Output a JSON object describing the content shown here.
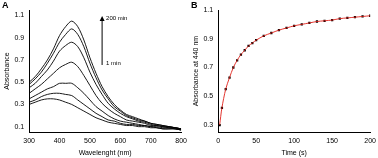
{
  "chart_data": [
    {
      "type": "line",
      "title": "A",
      "x_label": "Wavelenght (nm)",
      "y_label": "Absorbance",
      "annotations": [
        "200 min",
        "1 min"
      ],
      "x": [
        300,
        320,
        340,
        360,
        380,
        400,
        420,
        440,
        460,
        480,
        500,
        520,
        540,
        560,
        580,
        600,
        620,
        640,
        660,
        680,
        700,
        720,
        740,
        760,
        780,
        800
      ],
      "series": [
        {
          "color": "#000000",
          "values": [
            0.3,
            0.32,
            0.34,
            0.35,
            0.35,
            0.34,
            0.32,
            0.3,
            0.27,
            0.24,
            0.21,
            0.18,
            0.16,
            0.14,
            0.13,
            0.12,
            0.11,
            0.11,
            0.1,
            0.1,
            0.09,
            0.09,
            0.08,
            0.08,
            0.08,
            0.07
          ]
        },
        {
          "color": "#000000",
          "values": [
            0.32,
            0.34,
            0.37,
            0.39,
            0.4,
            0.4,
            0.39,
            0.38,
            0.34,
            0.3,
            0.26,
            0.22,
            0.19,
            0.16,
            0.15,
            0.13,
            0.12,
            0.12,
            0.11,
            0.11,
            0.1,
            0.09,
            0.08,
            0.08,
            0.08,
            0.07
          ]
        },
        {
          "color": "#000000",
          "values": [
            0.35,
            0.38,
            0.41,
            0.44,
            0.46,
            0.49,
            0.49,
            0.49,
            0.45,
            0.4,
            0.34,
            0.28,
            0.24,
            0.2,
            0.17,
            0.15,
            0.14,
            0.13,
            0.12,
            0.11,
            0.1,
            0.1,
            0.09,
            0.09,
            0.08,
            0.07
          ]
        },
        {
          "color": "#000000",
          "values": [
            0.4,
            0.44,
            0.48,
            0.53,
            0.58,
            0.63,
            0.66,
            0.68,
            0.64,
            0.56,
            0.47,
            0.38,
            0.31,
            0.26,
            0.22,
            0.19,
            0.16,
            0.15,
            0.14,
            0.13,
            0.11,
            0.11,
            0.1,
            0.09,
            0.09,
            0.08
          ]
        },
        {
          "color": "#000000",
          "values": [
            0.45,
            0.49,
            0.55,
            0.61,
            0.69,
            0.78,
            0.83,
            0.86,
            0.82,
            0.72,
            0.59,
            0.48,
            0.39,
            0.31,
            0.26,
            0.22,
            0.19,
            0.17,
            0.15,
            0.14,
            0.12,
            0.11,
            0.1,
            0.1,
            0.09,
            0.08
          ]
        },
        {
          "color": "#000000",
          "values": [
            0.48,
            0.53,
            0.59,
            0.67,
            0.76,
            0.86,
            0.93,
            0.98,
            0.93,
            0.82,
            0.67,
            0.54,
            0.43,
            0.35,
            0.28,
            0.24,
            0.2,
            0.18,
            0.16,
            0.15,
            0.13,
            0.12,
            0.11,
            0.1,
            0.09,
            0.08
          ]
        },
        {
          "color": "#000000",
          "values": [
            0.5,
            0.55,
            0.62,
            0.7,
            0.8,
            0.92,
            1.0,
            1.05,
            1.0,
            0.88,
            0.72,
            0.58,
            0.46,
            0.37,
            0.3,
            0.25,
            0.21,
            0.19,
            0.17,
            0.15,
            0.13,
            0.12,
            0.11,
            0.1,
            0.09,
            0.08
          ]
        }
      ],
      "xlim": [
        300,
        800
      ],
      "xticks": [
        300,
        400,
        500,
        600,
        700,
        800
      ],
      "ylim": [
        0.05,
        1.15
      ],
      "yticks": [
        0.1,
        0.3,
        0.5,
        0.7,
        0.9,
        1.1
      ],
      "grid": false
    },
    {
      "type": "scatter",
      "title": "B",
      "x_label": "Time (s)",
      "y_label": "Absorbance at 440 nm",
      "x": [
        2,
        5,
        10,
        15,
        20,
        25,
        30,
        35,
        40,
        45,
        50,
        60,
        70,
        80,
        90,
        100,
        110,
        120,
        130,
        140,
        150,
        160,
        170,
        180,
        190,
        200
      ],
      "series": [
        {
          "type": "scatter",
          "marker": "square",
          "color": "#000000",
          "values": [
            0.3,
            0.42,
            0.55,
            0.63,
            0.7,
            0.75,
            0.79,
            0.82,
            0.85,
            0.87,
            0.89,
            0.92,
            0.94,
            0.96,
            0.975,
            0.99,
            1.0,
            1.01,
            1.02,
            1.025,
            1.03,
            1.04,
            1.045,
            1.05,
            1.055,
            1.06
          ]
        },
        {
          "type": "line",
          "line_style": "solid",
          "color": "#e0201a",
          "values": [
            0.3,
            0.42,
            0.55,
            0.63,
            0.7,
            0.75,
            0.79,
            0.82,
            0.85,
            0.87,
            0.89,
            0.92,
            0.94,
            0.96,
            0.975,
            0.99,
            1.0,
            1.01,
            1.02,
            1.025,
            1.03,
            1.04,
            1.045,
            1.05,
            1.055,
            1.06
          ]
        }
      ],
      "xlim": [
        0,
        200
      ],
      "xticks": [
        0,
        50,
        100,
        150,
        200
      ],
      "ylim": [
        0.25,
        1.1
      ],
      "yticks": [
        0.3,
        0.5,
        0.7,
        0.9,
        1.1
      ],
      "grid": false
    }
  ]
}
